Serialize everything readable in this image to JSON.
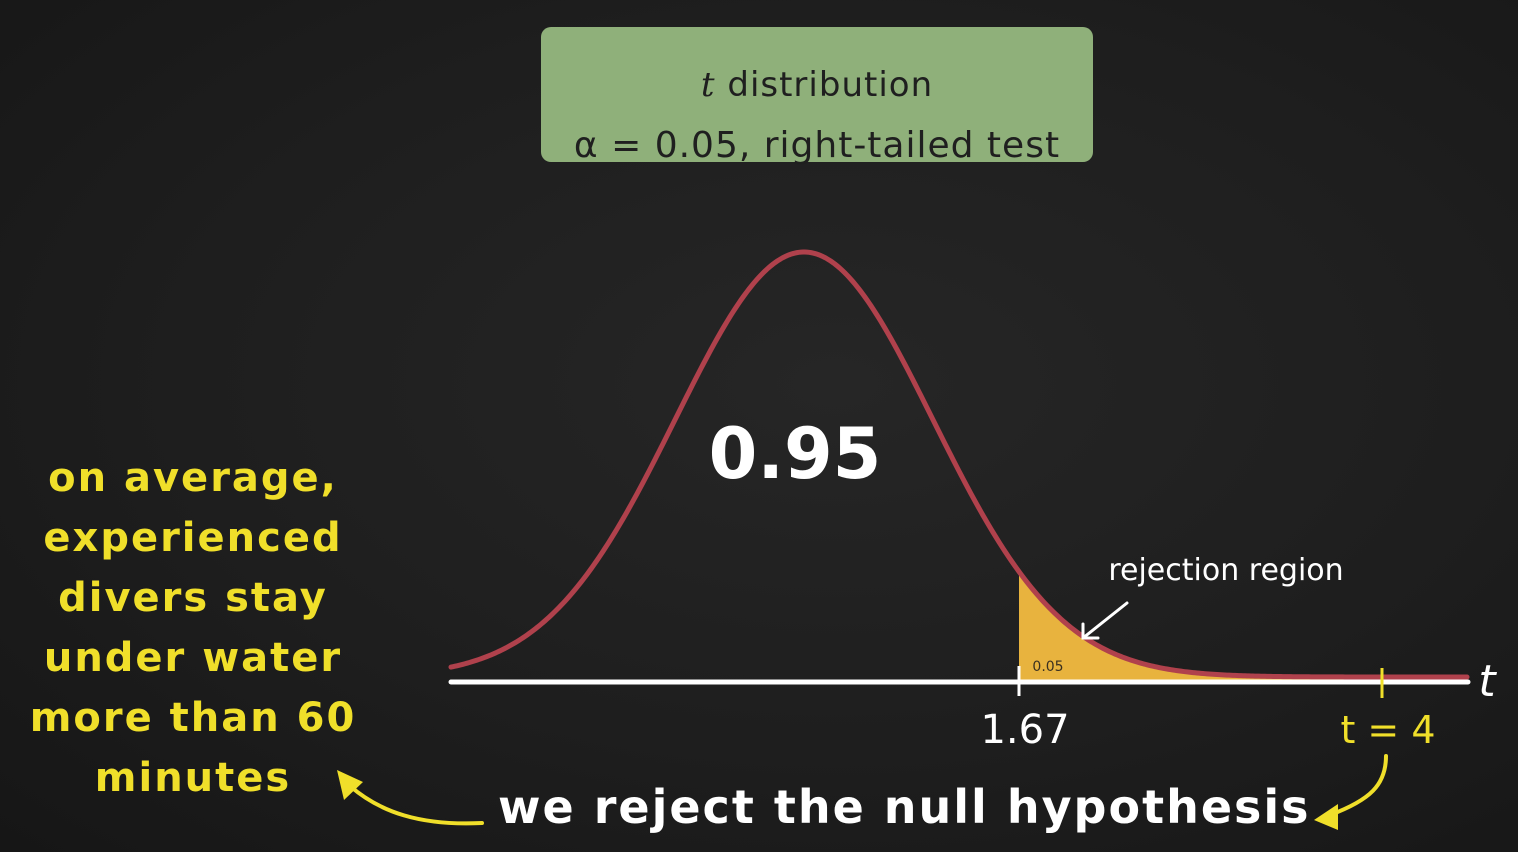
{
  "title": {
    "variable": "t",
    "line1_rest": "distribution",
    "line2": "α = 0.05, right-tailed test"
  },
  "chart_data": {
    "type": "area",
    "distribution": "t",
    "center_area_label": "0.95",
    "tail_area_label": "0.05",
    "critical_value_label": "1.67",
    "critical_value": 1.67,
    "test_statistic_label": "t = 4",
    "test_statistic": 4,
    "axis_label": "t",
    "region_label": "rejection region",
    "colors": {
      "curve": "#b0414c",
      "tail_fill": "#e8b33e",
      "axis": "#ffffff",
      "annotation": "#f0df2a"
    }
  },
  "left_note": {
    "lines": [
      "on average,",
      "experienced",
      "divers stay",
      "under water",
      "more than 60",
      "minutes"
    ]
  },
  "conclusion": "we reject the null hypothesis"
}
